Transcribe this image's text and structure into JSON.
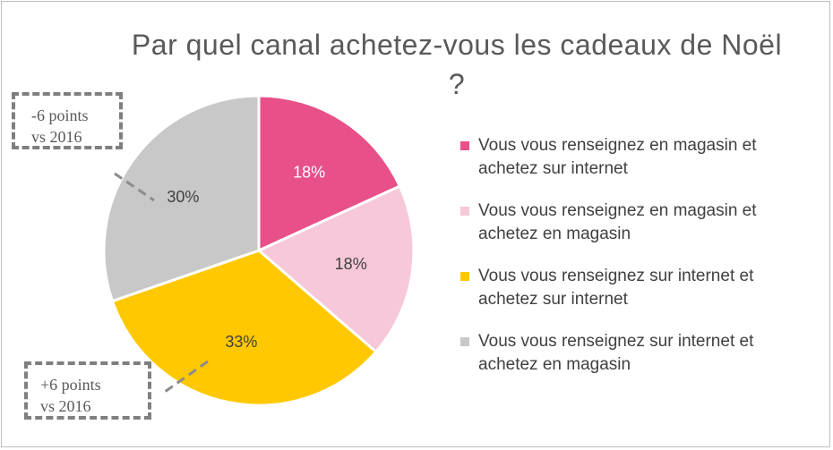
{
  "chart_data": {
    "type": "pie",
    "title": "Par quel canal achetez-vous les cadeaux de Noël ?",
    "slices": [
      {
        "label": "Vous vous renseignez en magasin et achetez sur internet",
        "value": 18,
        "value_label": "18%",
        "color": "#E8508A"
      },
      {
        "label": "Vous vous renseignez en magasin et achetez en magasin",
        "value": 18,
        "value_label": "18%",
        "color": "#F7C8D9"
      },
      {
        "label": "Vous vous renseignez sur internet et achetez sur internet",
        "value": 33,
        "value_label": "33%",
        "color": "#FFC800"
      },
      {
        "label": "Vous vous renseignez sur internet et achetez en magasin",
        "value": 30,
        "value_label": "30%",
        "color": "#C8C8C8"
      }
    ],
    "legend_position": "right",
    "label_colors": [
      "#ffffff",
      "#404040",
      "#404040",
      "#404040"
    ]
  },
  "annotations": {
    "top": {
      "line1": "-6 points",
      "line2": "vs 2016"
    },
    "bottom": {
      "line1": "+6 points",
      "line2": "vs 2016"
    }
  }
}
